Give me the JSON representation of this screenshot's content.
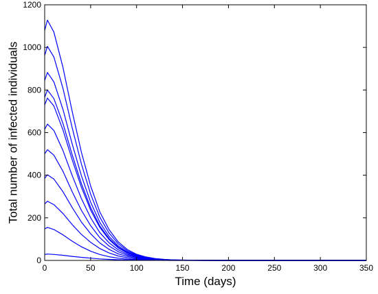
{
  "chart_data": {
    "type": "line",
    "title": "",
    "xlabel": "Time (days)",
    "ylabel": "Total number of infected individuals",
    "xlim": [
      0,
      350
    ],
    "ylim": [
      0,
      1200
    ],
    "xticks": [
      0,
      50,
      100,
      150,
      200,
      250,
      300,
      350
    ],
    "yticks": [
      0,
      200,
      400,
      600,
      800,
      1000,
      1200
    ],
    "grid": false,
    "legend": "none",
    "line_color": "#0000ff",
    "series": [
      {
        "x": [
          0,
          3,
          10,
          20,
          30,
          40,
          50,
          60,
          70,
          80,
          90,
          100,
          110,
          120,
          130,
          140,
          150,
          175,
          200,
          250,
          300,
          350
        ],
        "y": [
          28,
          30,
          28,
          24,
          19,
          14.5,
          10.5,
          7.2,
          4.8,
          3.1,
          2.0,
          1.2,
          0.7,
          0.4,
          0.25,
          0.15,
          0.08,
          0.02,
          0,
          0,
          0,
          0
        ]
      },
      {
        "x": [
          0,
          3,
          10,
          20,
          30,
          40,
          50,
          60,
          70,
          80,
          90,
          100,
          110,
          120,
          130,
          140,
          150,
          175,
          200,
          250,
          300,
          350
        ],
        "y": [
          148,
          155,
          145,
          120,
          90,
          64,
          43,
          28,
          17.5,
          10.5,
          6.2,
          3.6,
          2.1,
          1.2,
          0.7,
          0.4,
          0.22,
          0.05,
          0.01,
          0,
          0,
          0
        ]
      },
      {
        "x": [
          0,
          3,
          10,
          20,
          30,
          40,
          50,
          60,
          70,
          80,
          90,
          100,
          110,
          120,
          130,
          140,
          150,
          175,
          200,
          250,
          300,
          350
        ],
        "y": [
          265,
          278,
          262,
          220,
          168,
          122,
          85,
          56,
          35,
          21,
          12.5,
          7.2,
          4.1,
          2.3,
          1.3,
          0.72,
          0.4,
          0.09,
          0.02,
          0,
          0,
          0
        ]
      },
      {
        "x": [
          0,
          3,
          10,
          20,
          30,
          40,
          50,
          60,
          70,
          80,
          90,
          100,
          110,
          120,
          130,
          140,
          150,
          175,
          200,
          250,
          300,
          350
        ],
        "y": [
          385,
          402,
          382,
          322,
          248,
          180,
          125,
          82,
          52,
          31,
          18.5,
          10.6,
          6,
          3.3,
          1.8,
          1,
          0.55,
          0.12,
          0.03,
          0,
          0,
          0
        ]
      },
      {
        "x": [
          0,
          3,
          10,
          20,
          30,
          40,
          50,
          60,
          70,
          80,
          90,
          100,
          110,
          120,
          130,
          140,
          150,
          175,
          200,
          250,
          300,
          350
        ],
        "y": [
          500,
          520,
          494,
          418,
          322,
          235,
          163,
          107,
          68,
          41,
          24,
          14,
          7.8,
          4.3,
          2.4,
          1.3,
          0.7,
          0.15,
          0.03,
          0,
          0,
          0
        ]
      },
      {
        "x": [
          0,
          3,
          10,
          20,
          30,
          40,
          50,
          60,
          70,
          80,
          90,
          100,
          110,
          120,
          130,
          140,
          150,
          175,
          200,
          250,
          300,
          350
        ],
        "y": [
          615,
          640,
          610,
          515,
          398,
          290,
          200,
          131,
          83,
          50,
          29,
          17,
          9.5,
          5.2,
          2.9,
          1.6,
          0.85,
          0.18,
          0.04,
          0,
          0,
          0
        ]
      },
      {
        "x": [
          0,
          3,
          10,
          20,
          30,
          40,
          50,
          60,
          70,
          80,
          90,
          100,
          110,
          120,
          130,
          140,
          150,
          175,
          200,
          250,
          300,
          350
        ],
        "y": [
          730,
          762,
          725,
          612,
          472,
          343,
          236,
          155,
          98,
          59,
          34.5,
          20,
          11,
          6.1,
          3.4,
          1.8,
          1,
          0.21,
          0.05,
          0,
          0,
          0
        ]
      },
      {
        "x": [
          0,
          3,
          10,
          20,
          30,
          40,
          50,
          60,
          70,
          80,
          90,
          100,
          110,
          120,
          130,
          140,
          150,
          175,
          200,
          250,
          300,
          350
        ],
        "y": [
          765,
          800,
          760,
          642,
          495,
          360,
          248,
          162,
          103,
          62,
          36,
          21,
          11.6,
          6.4,
          3.5,
          1.9,
          1.05,
          0.22,
          0.05,
          0,
          0,
          0
        ]
      },
      {
        "x": [
          0,
          3,
          10,
          20,
          30,
          40,
          50,
          60,
          70,
          80,
          90,
          100,
          110,
          120,
          130,
          140,
          150,
          175,
          200,
          250,
          300,
          350
        ],
        "y": [
          845,
          882,
          838,
          708,
          546,
          397,
          273,
          179,
          113,
          68,
          40,
          23,
          12.8,
          7,
          3.9,
          2.1,
          1.15,
          0.24,
          0.05,
          0,
          0,
          0
        ]
      },
      {
        "x": [
          0,
          3,
          10,
          20,
          30,
          40,
          50,
          60,
          70,
          80,
          90,
          100,
          110,
          120,
          130,
          140,
          150,
          175,
          200,
          250,
          300,
          350
        ],
        "y": [
          962,
          1005,
          955,
          807,
          622,
          452,
          311,
          203,
          129,
          78,
          45.5,
          26,
          14.5,
          8,
          4.4,
          2.4,
          1.3,
          0.27,
          0.06,
          0,
          0,
          0
        ]
      },
      {
        "x": [
          0,
          3,
          10,
          20,
          30,
          40,
          50,
          60,
          70,
          80,
          90,
          100,
          110,
          120,
          130,
          140,
          150,
          175,
          200,
          250,
          300,
          350
        ],
        "y": [
          1080,
          1128,
          1072,
          905,
          698,
          507,
          349,
          228,
          145,
          87,
          51,
          29,
          16.3,
          9,
          4.9,
          2.7,
          1.45,
          0.3,
          0.07,
          0,
          0,
          0
        ]
      }
    ]
  }
}
